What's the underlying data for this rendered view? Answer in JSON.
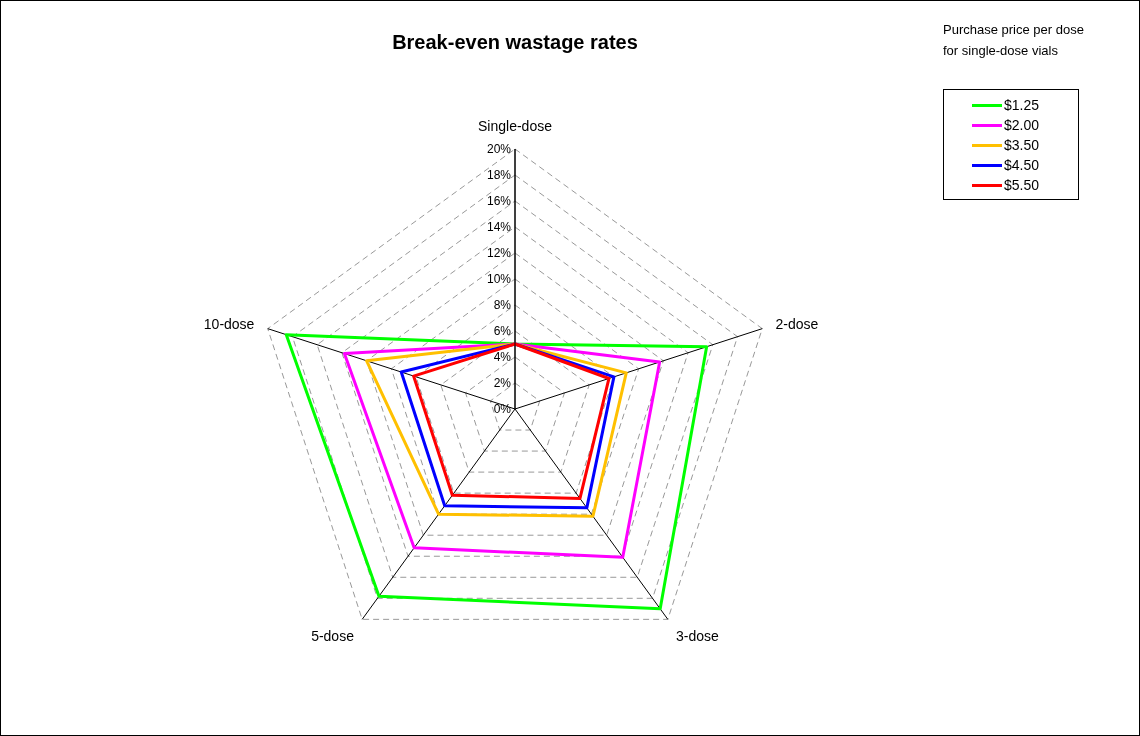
{
  "chart_data": {
    "type": "radar",
    "title": "Break-even wastage rates",
    "legend_title": "Purchase price per dose for single-dose vials",
    "categories": [
      "Single-dose",
      "2-dose",
      "3-dose",
      "5-dose",
      "10-dose"
    ],
    "series": [
      {
        "name": "$1.25",
        "color": "#00ff00",
        "values": [
          5,
          15.5,
          19,
          17.8,
          18.5
        ]
      },
      {
        "name": "$2.00",
        "color": "#ff00ff",
        "values": [
          5,
          11.7,
          14.1,
          13.2,
          13.8
        ]
      },
      {
        "name": "$3.50",
        "color": "#ffc000",
        "values": [
          5,
          9,
          10.2,
          10,
          12
        ]
      },
      {
        "name": "$4.50",
        "color": "#0000ff",
        "values": [
          5,
          8,
          9.4,
          9.2,
          9.2
        ]
      },
      {
        "name": "$5.50",
        "color": "#ff0000",
        "values": [
          5,
          7.6,
          8.5,
          8.2,
          8.2
        ]
      }
    ],
    "ylim": [
      0,
      20
    ],
    "yticks": [
      {
        "value": 0,
        "label": "0%"
      },
      {
        "value": 2,
        "label": "2%"
      },
      {
        "value": 4,
        "label": "4%"
      },
      {
        "value": 6,
        "label": "6%"
      },
      {
        "value": 8,
        "label": "8%"
      },
      {
        "value": 10,
        "label": "10%"
      },
      {
        "value": 12,
        "label": "12%"
      },
      {
        "value": 14,
        "label": "14%"
      },
      {
        "value": 16,
        "label": "16%"
      },
      {
        "value": 18,
        "label": "18%"
      },
      {
        "value": 20,
        "label": "20%"
      }
    ],
    "grid": true,
    "legend": "top right",
    "marker": "none"
  }
}
